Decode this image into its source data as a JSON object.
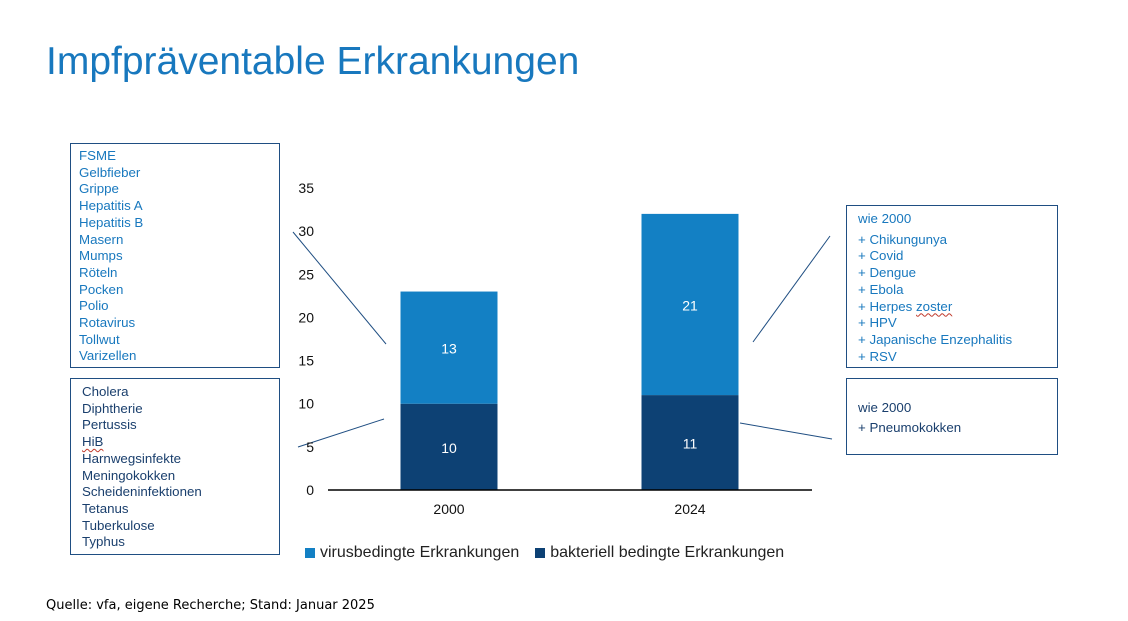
{
  "title": "Impfpräventable Erkrankungen",
  "source": "Quelle: vfa, eigene Recherche; Stand: Januar 2025",
  "boxes": {
    "virus_2000": [
      "FSME",
      "Gelbfieber",
      "Grippe",
      "Hepatitis A",
      "Hepatitis B",
      "Masern",
      "Mumps",
      "Röteln",
      "Pocken",
      "Polio",
      "Rotavirus",
      "Tollwut",
      "Varizellen"
    ],
    "bact_2000": [
      "Cholera",
      "Diphtherie",
      "Pertussis",
      "HiB",
      "Harnwegsinfekte",
      "Meningokokken",
      "Scheideninfektionen",
      "Tetanus",
      "Tuberkulose",
      "Typhus"
    ],
    "virus_2024_head": "wie 2000",
    "virus_2024": [
      "+ Chikungunya",
      "+ Covid",
      "+ Dengue",
      "+ Ebola",
      "+ Herpes ",
      "zoster",
      "+ HPV",
      "+ Japanische Enzephalitis",
      "+ RSV"
    ],
    "bact_2024_head": "wie 2000",
    "bact_2024": [
      "+ Pneumokokken"
    ]
  },
  "colors": {
    "virus": "#1380c4",
    "bact": "#0d4174",
    "title": "#1878be",
    "box_border": "#1f4e82",
    "axis": "#000000"
  },
  "chart_data": {
    "type": "bar",
    "stacked": true,
    "categories": [
      "2000",
      "2024"
    ],
    "series": [
      {
        "name": "bakteriell bedingte Erkrankungen",
        "values": [
          10,
          11
        ]
      },
      {
        "name": "virusbedingte Erkrankungen",
        "values": [
          13,
          21
        ]
      }
    ],
    "data_labels": {
      "bact": [
        "10",
        "11"
      ],
      "virus": [
        "13",
        "21"
      ]
    },
    "y_ticks": [
      "0",
      "5",
      "10",
      "15",
      "20",
      "25",
      "30",
      "35"
    ],
    "ylim": [
      0,
      35
    ],
    "grid": false,
    "legend_position": "bottom",
    "legend": [
      "virusbedingte Erkrankungen",
      "bakteriell bedingte Erkrankungen"
    ]
  }
}
